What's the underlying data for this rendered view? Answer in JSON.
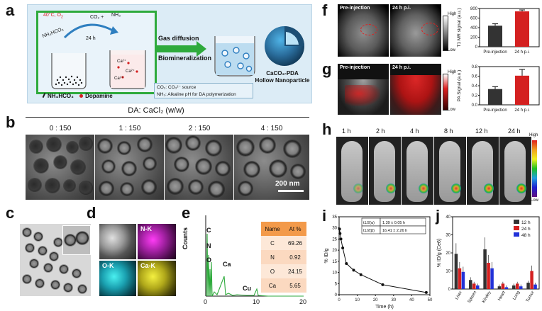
{
  "panels": {
    "a": "a",
    "b": "b",
    "c": "c",
    "d": "d",
    "e": "e",
    "f": "f",
    "g": "g",
    "h": "h",
    "i": "i",
    "j": "j"
  },
  "panel_a": {
    "temp": "40°C, O",
    "temp_sub": "2",
    "nh4_label": "NH₄HCO₃",
    "co2_label": "CO₂ +",
    "nh3_label": "NH₃",
    "time": "24 h",
    "ca_label1": "Ca²⁺",
    "ca_label2": "Ca²⁺",
    "ca_label3": "Ca²⁺",
    "gas_diffusion": "Gas diffusion",
    "biomineralization": "Biomineralization",
    "product_line1": "CaCO₃-PDA",
    "product_line2": "Hollow Nanoparticle",
    "legend_nh4": "NH₄HCO₃",
    "legend_dopamine": "Dopamine",
    "note1": "CO₂: CO₃²⁻ source",
    "note2": "NH₃: Alkaline pH for DA polymerization"
  },
  "panel_b": {
    "title": "DA: CaCl₂ (w/w)",
    "ratios": [
      "0 : 150",
      "1 : 150",
      "2 : 150",
      "4 : 150"
    ],
    "scale_bar": "200 nm"
  },
  "panel_d": {
    "maps": [
      "N-K",
      "O-K",
      "Ca-K"
    ]
  },
  "panel_e": {
    "ylabel": "Counts",
    "peaks": [
      "C",
      "N",
      "O",
      "Ca",
      "Cu"
    ],
    "xticks": [
      "0",
      "10",
      "20"
    ],
    "table_header": [
      "Name",
      "At %"
    ],
    "table_rows": [
      [
        "C",
        "69.26"
      ],
      [
        "N",
        "0.92"
      ],
      [
        "O",
        "24.15"
      ],
      [
        "Ca",
        "5.65"
      ]
    ]
  },
  "panel_f": {
    "pre": "Pre-injection",
    "post": "24 h p.i.",
    "high": "High",
    "low": "Low",
    "ylabel": "T1 MR signal (a.u.)"
  },
  "panel_g": {
    "pre": "Pre-injection",
    "post": "24 h p.i.",
    "high": "High",
    "low": "Low",
    "ylabel": "PA Signal (a.u.)"
  },
  "panel_h": {
    "times": [
      "1 h",
      "2 h",
      "4 h",
      "8 h",
      "12 h",
      "24 h"
    ],
    "high": "High",
    "low": "Low"
  },
  "colors": {
    "bar_dark": "#333333",
    "bar_red": "#d42020",
    "bar_blue": "#2232d8",
    "panel_a_bg": "#dcecf6",
    "panel_a_frame": "#2eaa3c"
  },
  "chart_data": [
    {
      "id": "f",
      "type": "bar",
      "categories": [
        "Pre-injection",
        "24 h p.i."
      ],
      "values": [
        440,
        740
      ],
      "errors": [
        40,
        30
      ],
      "ylabel": "T1 MR signal (a.u.)",
      "yticks": [
        "0",
        "200",
        "400",
        "600",
        "800"
      ],
      "ylim": [
        0,
        800
      ]
    },
    {
      "id": "g",
      "type": "bar",
      "categories": [
        "Pre-injection",
        "24 h p.i."
      ],
      "values": [
        0.33,
        0.61
      ],
      "errors": [
        0.05,
        0.13
      ],
      "ylabel": "PA Signal (a.u.)",
      "yticks": [
        "0.0",
        "0.2",
        "0.4",
        "0.6",
        "0.8"
      ],
      "ylim": [
        0,
        0.8
      ]
    },
    {
      "id": "i",
      "type": "line",
      "xlabel": "Time (h)",
      "ylabel": "% ID/g",
      "x": [
        0.25,
        0.5,
        1,
        2,
        4,
        8,
        12,
        24,
        48
      ],
      "y": [
        29.5,
        27.5,
        25,
        21,
        14,
        11,
        9,
        4.5,
        1
      ],
      "xticks": [
        "0",
        "10",
        "20",
        "30",
        "40",
        "50"
      ],
      "yticks": [
        "0",
        "5",
        "10",
        "15",
        "20",
        "25",
        "30",
        "35"
      ],
      "xlim": [
        0,
        50
      ],
      "ylim": [
        0,
        35
      ],
      "table": [
        [
          "t1/2(α)",
          "1.39 ± 0.05 h"
        ],
        [
          "t1/2(β)",
          "16.41 ± 2.26 h"
        ]
      ]
    },
    {
      "id": "j",
      "type": "bar",
      "ylabel": "% ID/g (Ce6)",
      "categories": [
        "Liver",
        "Spleen",
        "Kindey",
        "Heart",
        "Lung",
        "Tumor"
      ],
      "series": [
        {
          "name": "12 h",
          "values": [
            19.5,
            5,
            22,
            1.5,
            2,
            3.5
          ]
        },
        {
          "name": "24 h",
          "values": [
            11.5,
            3,
            14.5,
            3,
            3,
            10
          ]
        },
        {
          "name": "48 h",
          "values": [
            9.5,
            2,
            11.5,
            1,
            1.5,
            2.5
          ]
        }
      ],
      "yticks": [
        "0",
        "10",
        "20",
        "30",
        "40"
      ],
      "ylim": [
        0,
        40
      ]
    }
  ]
}
